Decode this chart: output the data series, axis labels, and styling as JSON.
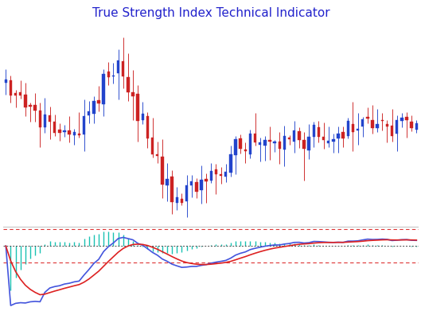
{
  "title": "True Strength Index Technical Indicator",
  "title_color": "#2222cc",
  "title_fontsize": 11,
  "n_candles": 85,
  "bg_color": "#ffffff",
  "candle_up_color": "#2244cc",
  "candle_down_color": "#cc2222",
  "candle_wick_up": "#2244cc",
  "candle_wick_down": "#cc2222",
  "tsi_line_color": "#4455dd",
  "tsi_signal_color": "#dd2222",
  "tsi_hist_color": "#00bbaa",
  "tsi_zero_color": "#444444",
  "tsi_level_color": "#dd3333",
  "separator_color": "#bbbbbb",
  "upper_ratio": 0.715,
  "lower_ratio": 0.285,
  "upper_level": 0.28,
  "lower_level": -0.28
}
